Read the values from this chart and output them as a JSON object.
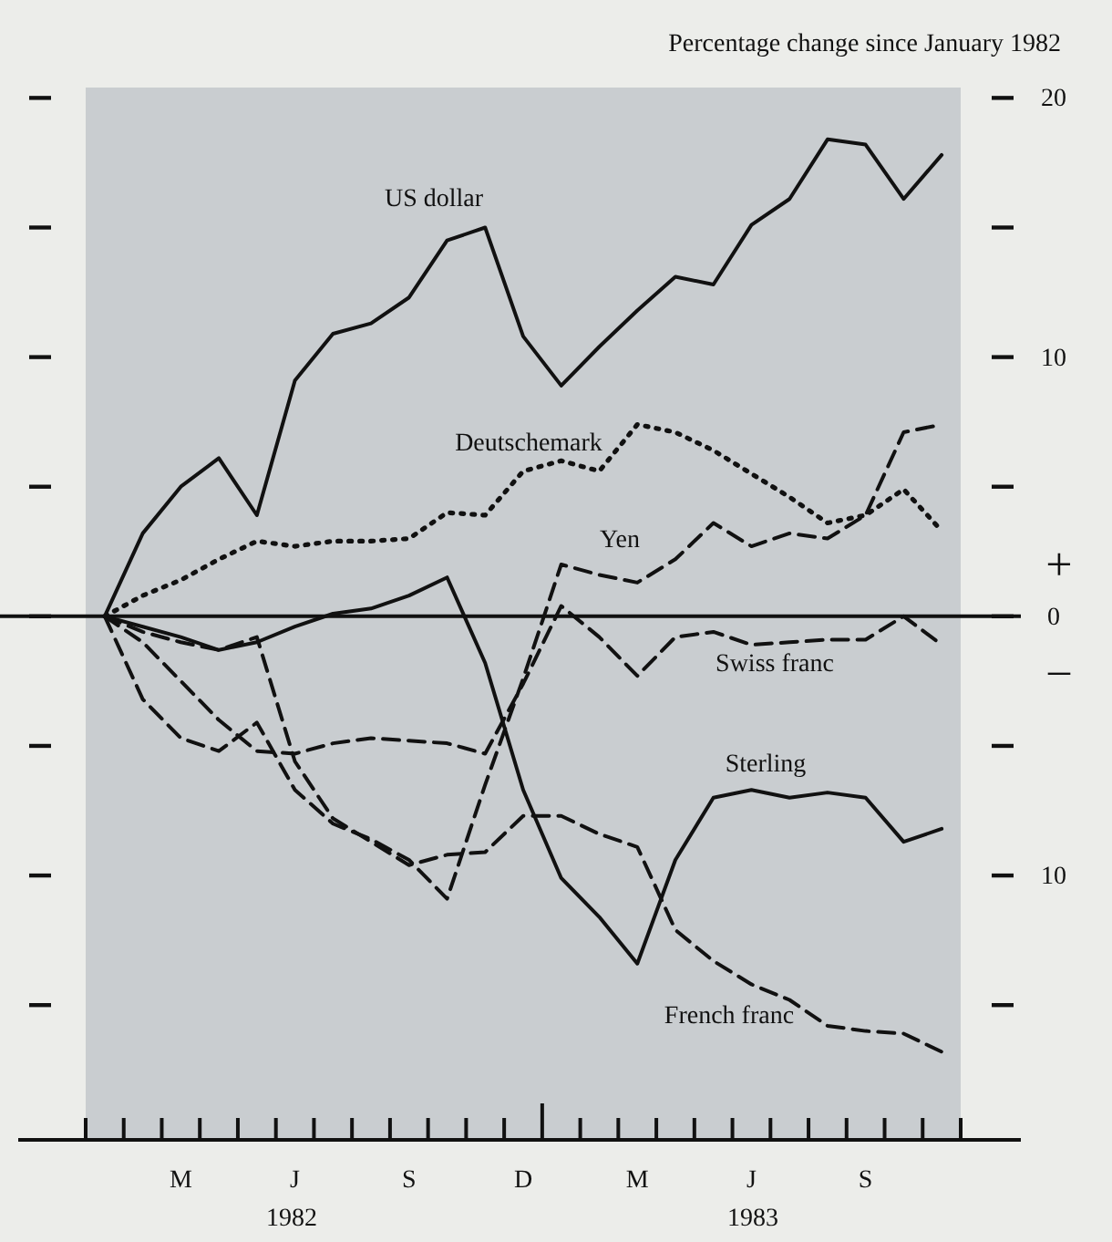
{
  "chart_data": {
    "type": "line",
    "ylabel": "Percentage change since January 1982",
    "categories": [
      null,
      null,
      "M",
      null,
      null,
      "J",
      null,
      null,
      "S",
      null,
      null,
      "D",
      null,
      null,
      "M",
      null,
      null,
      "J",
      null,
      null,
      "S",
      null,
      null
    ],
    "ylim": [
      -20.2,
      20.4
    ],
    "yticks": [
      20,
      10,
      0,
      {
        "value": -10,
        "label": "10"
      }
    ],
    "series": [
      {
        "name": "US dollar",
        "color": "#111111",
        "line_style": "solid",
        "values": [
          0,
          3.2,
          5.0,
          6.1,
          3.9,
          9.1,
          10.9,
          11.3,
          12.3,
          14.5,
          15.0,
          10.8,
          8.9,
          10.4,
          11.8,
          13.1,
          12.8,
          15.1,
          16.1,
          18.4,
          18.2,
          16.1,
          17.8
        ]
      },
      {
        "name": "Deutschemark",
        "color": "#111111",
        "line_style": "dotted",
        "values": [
          0,
          0.8,
          1.4,
          2.2,
          2.9,
          2.7,
          2.9,
          2.9,
          3.0,
          4.0,
          3.9,
          5.6,
          6.0,
          5.6,
          7.4,
          7.1,
          6.4,
          5.5,
          4.6,
          3.6,
          3.9,
          4.9,
          3.3
        ]
      },
      {
        "name": "Yen",
        "color": "#111111",
        "line_style": "dashed",
        "values": [
          0,
          -3.2,
          -4.7,
          -5.2,
          -4.1,
          -6.7,
          -8.0,
          -8.6,
          -9.4,
          -10.9,
          -6.5,
          -2.4,
          2.0,
          1.6,
          1.3,
          2.2,
          3.6,
          2.7,
          3.2,
          3.0,
          3.9,
          7.1,
          7.4
        ]
      },
      {
        "name": "Swiss franc",
        "color": "#111111",
        "line_style": "dashed",
        "values": [
          0,
          -1.0,
          -2.5,
          -4.0,
          -5.2,
          -5.3,
          -4.9,
          -4.7,
          -4.8,
          -4.9,
          -5.3,
          -2.6,
          0.4,
          -0.8,
          -2.3,
          -0.8,
          -0.6,
          -1.1,
          -1.0,
          -0.9,
          -0.9,
          0,
          -1.1
        ]
      },
      {
        "name": "Sterling",
        "color": "#111111",
        "line_style": "solid",
        "values": [
          0,
          -0.4,
          -0.8,
          -1.3,
          -1.0,
          -0.4,
          0.1,
          0.3,
          0.8,
          1.5,
          -1.8,
          -6.7,
          -10.1,
          -11.6,
          -13.4,
          -9.4,
          -7.0,
          -6.7,
          -7.0,
          -6.8,
          -7.0,
          -8.7,
          -8.2
        ]
      },
      {
        "name": "French franc",
        "color": "#111111",
        "line_style": "dashed",
        "values": [
          0,
          -0.6,
          -1.0,
          -1.3,
          -0.8,
          -5.6,
          -7.8,
          -8.7,
          -9.6,
          -9.2,
          -9.1,
          -7.7,
          -7.7,
          -8.4,
          -8.9,
          -12.1,
          -13.3,
          -14.2,
          -14.8,
          -15.8,
          -16.0,
          -16.1,
          -16.8
        ]
      }
    ],
    "ref_lines": [
      {
        "axis": "y",
        "value": 0,
        "color": "#111111"
      }
    ],
    "annotations": [
      "1982",
      "1983",
      "+",
      "–"
    ],
    "grid": false
  }
}
